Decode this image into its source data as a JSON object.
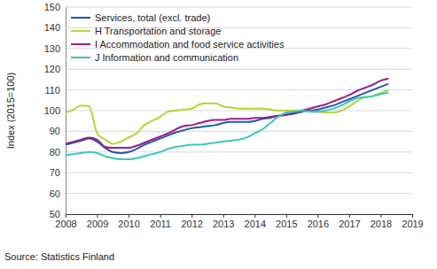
{
  "chart_data": {
    "type": "line",
    "y_label": "Index (2015=100)",
    "annotations": [
      "Source: Statistics Finland"
    ],
    "x": [
      2008,
      2008.25,
      2008.5,
      2008.75,
      2009,
      2009.25,
      2009.5,
      2009.75,
      2010,
      2010.25,
      2010.5,
      2010.75,
      2011,
      2011.25,
      2011.5,
      2011.75,
      2012,
      2012.25,
      2012.5,
      2012.75,
      2013,
      2013.25,
      2013.5,
      2013.75,
      2014,
      2014.25,
      2014.5,
      2014.75,
      2015,
      2015.25,
      2015.5,
      2015.75,
      2016,
      2016.25,
      2016.5,
      2016.75,
      2017,
      2017.25,
      2017.5,
      2017.75,
      2018,
      2018.25
    ],
    "series": [
      {
        "name": "Services, total (excl. trade)",
        "color": "#1d5ba6",
        "values": [
          83.5,
          84.5,
          85.5,
          86.5,
          85,
          82,
          80,
          79.5,
          80,
          81.5,
          83.5,
          85,
          86.5,
          88,
          89.5,
          90.5,
          91.5,
          92,
          92.5,
          93,
          94,
          94.5,
          94.5,
          94.5,
          95,
          96,
          96.5,
          97.5,
          98,
          98.5,
          99.5,
          100,
          100.5,
          101.5,
          102.5,
          104,
          105.5,
          107,
          108.5,
          110,
          111.5,
          113
        ]
      },
      {
        "name": "H Transportation and storage",
        "color": "#b6d433",
        "values": [
          99,
          100.5,
          102.5,
          102,
          89,
          86,
          84,
          85,
          87,
          89,
          93,
          95,
          97,
          99.5,
          100,
          100.5,
          101,
          103,
          103.5,
          103.5,
          102,
          101.5,
          101,
          101,
          101,
          101,
          100.5,
          100,
          100,
          100,
          100,
          99.5,
          99.5,
          99,
          99,
          100,
          102,
          104.5,
          106.5,
          107,
          108.5,
          110
        ]
      },
      {
        "name": "I Accommodation and food service activities",
        "color": "#9c1b8e",
        "values": [
          84,
          85,
          86,
          87,
          86,
          82.5,
          82,
          82,
          82,
          83,
          84.5,
          86,
          87.5,
          89,
          91,
          92.5,
          93,
          94,
          95,
          95.5,
          95.5,
          96,
          96,
          96,
          96.5,
          96.5,
          97,
          97.5,
          98,
          99,
          100,
          101,
          102,
          103,
          104.5,
          106,
          107.5,
          109.5,
          111,
          112.5,
          114.5,
          115.5
        ]
      },
      {
        "name": "J Information and communication",
        "color": "#3cc6bd",
        "values": [
          78.5,
          79,
          79.5,
          80,
          79.5,
          78,
          77,
          76.5,
          76.5,
          77,
          78,
          79,
          80,
          81.5,
          82.5,
          83,
          83.5,
          83.5,
          84,
          84.5,
          85,
          85.5,
          86,
          87,
          89,
          91,
          94,
          97,
          99,
          99.5,
          100,
          99.5,
          99.5,
          100,
          101,
          102.5,
          104.5,
          106,
          106.5,
          107,
          108,
          108.5
        ]
      }
    ],
    "xlim": [
      2008,
      2019
    ],
    "xticks": [
      2008,
      2009,
      2010,
      2011,
      2012,
      2013,
      2014,
      2015,
      2016,
      2017,
      2018,
      2019
    ],
    "ylim": [
      50,
      150
    ],
    "yticks": [
      50,
      60,
      70,
      80,
      90,
      100,
      110,
      120,
      130,
      140,
      150
    ],
    "grid": true,
    "legend": "upper left"
  }
}
